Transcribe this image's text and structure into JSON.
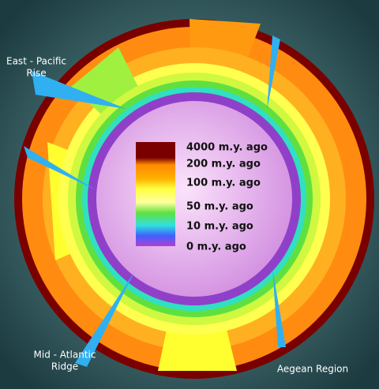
{
  "legend": {
    "labels": [
      "4000 m.y. ago",
      "200 m.y. ago",
      "100 m.y. ago",
      "50 m.y. ago",
      "10 m.y. ago",
      "0 m.y. ago"
    ]
  },
  "regions": [
    {
      "lines": [
        "East - Pacific",
        "Rise"
      ]
    },
    {
      "lines": [
        "Mid - Atlantic",
        "Ridge"
      ]
    },
    {
      "lines": [
        "Aegean Region"
      ]
    }
  ]
}
